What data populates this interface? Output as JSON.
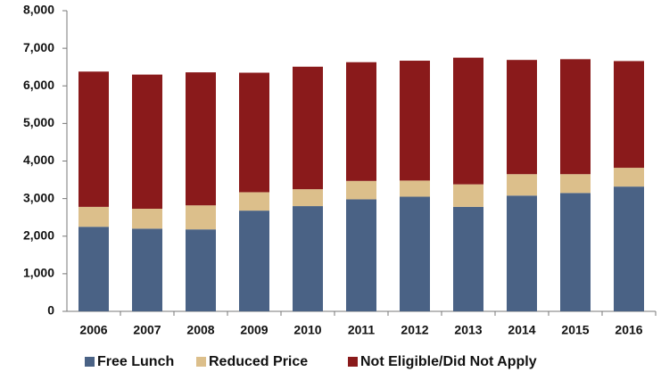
{
  "chart_data": {
    "type": "stacked-bar",
    "categories": [
      "2006",
      "2007",
      "2008",
      "2009",
      "2010",
      "2011",
      "2012",
      "2013",
      "2014",
      "2015",
      "2016"
    ],
    "series": [
      {
        "name": "Free Lunch",
        "color": "#4a6285",
        "values": [
          2250,
          2200,
          2180,
          2680,
          2800,
          2980,
          3050,
          2780,
          3080,
          3150,
          3320
        ]
      },
      {
        "name": "Reduced Price",
        "color": "#dcbf8b",
        "values": [
          530,
          530,
          640,
          490,
          450,
          490,
          430,
          600,
          570,
          500,
          500
        ]
      },
      {
        "name": "Not Eligible/Did Not Apply",
        "color": "#8a1a1b",
        "values": [
          3600,
          3570,
          3540,
          3180,
          3260,
          3160,
          3190,
          3370,
          3040,
          3060,
          2840
        ]
      }
    ],
    "ylim": [
      0,
      8000
    ],
    "yticks": [
      0,
      {
        "value": 1000,
        "label": "1,000"
      },
      {
        "value": 2000,
        "label": "2,000"
      },
      {
        "value": 3000,
        "label": "3,000"
      },
      {
        "value": 4000,
        "label": "4,000"
      },
      {
        "value": 5000,
        "label": "5,000"
      },
      {
        "value": 6000,
        "label": "6,000"
      },
      {
        "value": 7000,
        "label": "7,000"
      },
      {
        "value": 8000,
        "label": "8,000"
      }
    ],
    "legend": "bottom"
  }
}
